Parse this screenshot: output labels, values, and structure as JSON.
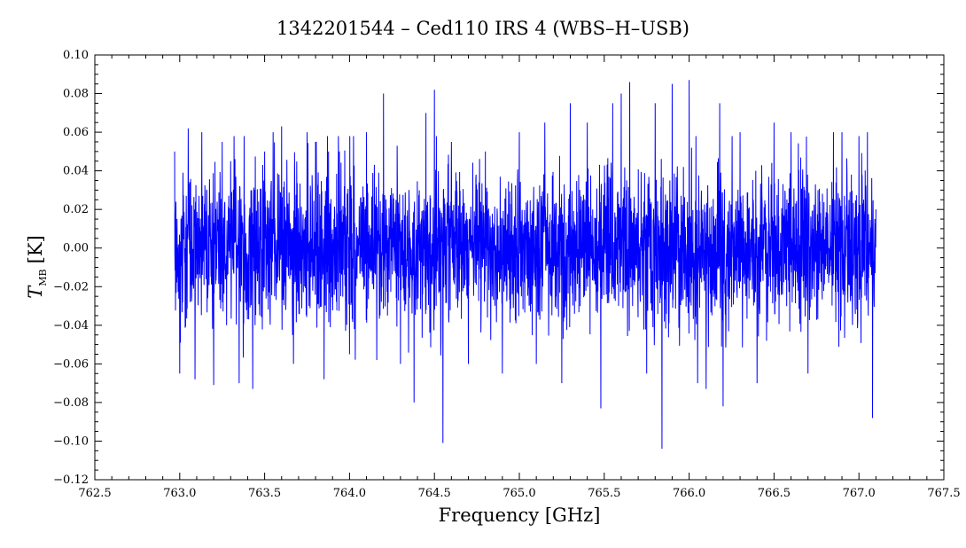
{
  "chart_data": {
    "type": "line",
    "title": "1342201544 – Ced110 IRS 4 (WBS–H–USB)",
    "xlabel": "Frequency [GHz]",
    "ylabel_main": "T",
    "ylabel_sub": "MB",
    "ylabel_unit": "[K]",
    "xlim": [
      762.5,
      767.5
    ],
    "ylim": [
      -0.12,
      0.1
    ],
    "x_ticks": [
      "762.5",
      "763.0",
      "763.5",
      "764.0",
      "764.5",
      "765.0",
      "765.5",
      "766.0",
      "766.5",
      "767.0",
      "767.5"
    ],
    "y_ticks": [
      "0.10",
      "0.08",
      "0.06",
      "0.04",
      "0.02",
      "0.00",
      "−0.02",
      "−0.04",
      "−0.06",
      "−0.08",
      "−0.10",
      "−0.12"
    ],
    "grid": false,
    "series": [
      {
        "color": "#0000ff",
        "x_range": [
          762.97,
          767.1
        ],
        "x": [
          762.97,
          763.0,
          763.05,
          763.09,
          763.13,
          763.2,
          763.25,
          763.3,
          763.35,
          763.43,
          763.5,
          763.55,
          763.6,
          763.67,
          763.75,
          763.8,
          763.85,
          763.94,
          764.0,
          764.1,
          764.2,
          764.3,
          764.38,
          764.45,
          764.5,
          764.55,
          764.6,
          764.7,
          764.8,
          764.9,
          765.0,
          765.1,
          765.15,
          765.25,
          765.3,
          765.4,
          765.48,
          765.55,
          765.6,
          765.65,
          765.75,
          765.8,
          765.84,
          765.9,
          766.0,
          766.05,
          766.1,
          766.18,
          766.2,
          766.3,
          766.4,
          766.5,
          766.6,
          766.7,
          766.85,
          766.9,
          767.0,
          767.05,
          767.08,
          767.1
        ],
        "y": [
          0.05,
          -0.065,
          0.062,
          -0.068,
          0.06,
          -0.071,
          0.055,
          0.045,
          -0.07,
          -0.073,
          0.05,
          0.06,
          0.063,
          -0.06,
          0.06,
          0.055,
          -0.068,
          0.05,
          -0.055,
          0.06,
          0.08,
          -0.06,
          -0.08,
          0.07,
          0.082,
          -0.101,
          0.055,
          -0.06,
          0.05,
          -0.065,
          0.06,
          -0.06,
          0.065,
          -0.07,
          0.075,
          0.065,
          -0.083,
          0.075,
          0.08,
          0.086,
          -0.065,
          0.075,
          -0.104,
          0.085,
          0.087,
          -0.07,
          -0.073,
          0.075,
          -0.082,
          0.06,
          -0.07,
          0.065,
          0.06,
          -0.065,
          0.06,
          0.06,
          0.058,
          0.06,
          -0.088,
          0.02
        ],
        "noise_sigma": 0.02,
        "n_points": 3200
      }
    ]
  }
}
